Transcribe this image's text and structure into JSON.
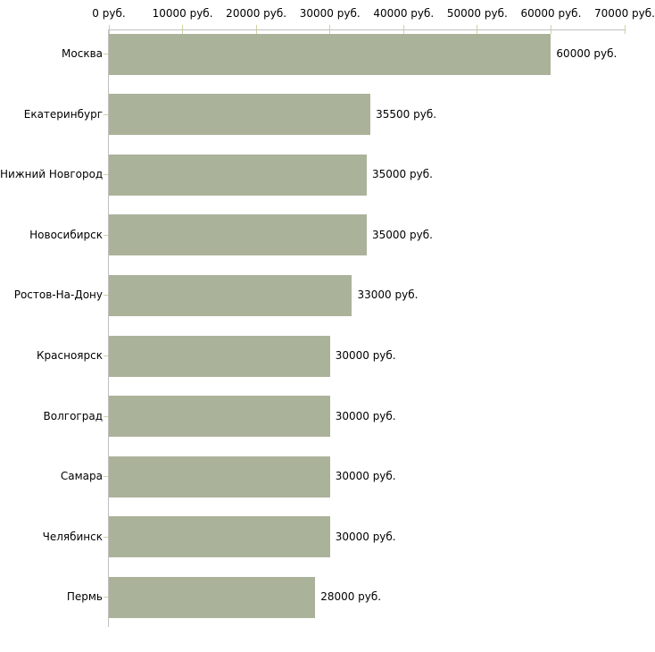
{
  "chart_data": {
    "type": "bar",
    "orientation": "horizontal",
    "title": "",
    "xlabel": "",
    "ylabel": "",
    "unit": "руб.",
    "categories": [
      "Москва",
      "Екатеринбург",
      "Нижний Новгород",
      "Новосибирск",
      "Ростов-На-Дону",
      "Красноярск",
      "Волгоград",
      "Самара",
      "Челябинск",
      "Пермь"
    ],
    "values": [
      60000,
      35500,
      35000,
      35000,
      33000,
      30000,
      30000,
      30000,
      30000,
      28000
    ],
    "value_labels": [
      "60000 руб.",
      "35500 руб.",
      "35000 руб.",
      "35000 руб.",
      "33000 руб.",
      "30000 руб.",
      "30000 руб.",
      "30000 руб.",
      "30000 руб.",
      "28000 руб."
    ],
    "x_ticks": [
      0,
      10000,
      20000,
      30000,
      40000,
      50000,
      60000,
      70000
    ],
    "x_tick_labels": [
      "0 руб.",
      "10000 руб.",
      "20000 руб.",
      "30000 руб.",
      "40000 руб.",
      "50000 руб.",
      "60000 руб.",
      "70000 руб."
    ],
    "xlim": [
      0,
      70000
    ],
    "grid": false,
    "legend": null,
    "axis_position": "top",
    "colors": {
      "bar": "#abb29a",
      "axis_line": "#c0c0c0",
      "tick_mark": "#d2d2a0",
      "text": "#000000",
      "background": "#ffffff"
    }
  }
}
